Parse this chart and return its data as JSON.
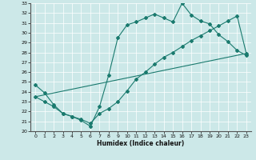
{
  "xlabel": "Humidex (Indice chaleur)",
  "xlim": [
    -0.5,
    23.5
  ],
  "ylim": [
    20,
    33
  ],
  "yticks": [
    20,
    21,
    22,
    23,
    24,
    25,
    26,
    27,
    28,
    29,
    30,
    31,
    32,
    33
  ],
  "xticks": [
    0,
    1,
    2,
    3,
    4,
    5,
    6,
    7,
    8,
    9,
    10,
    11,
    12,
    13,
    14,
    15,
    16,
    17,
    18,
    19,
    20,
    21,
    22,
    23
  ],
  "bg_color": "#cce8e8",
  "line_color": "#1a7a6e",
  "grid_color": "#ffffff",
  "line1_x": [
    0,
    1,
    2,
    3,
    4,
    5,
    6,
    7,
    8,
    9,
    10,
    11,
    12,
    13,
    14,
    15,
    16,
    17,
    18,
    19,
    20,
    21,
    22,
    23
  ],
  "line1_y": [
    24.7,
    23.9,
    22.7,
    21.8,
    21.5,
    21.1,
    20.5,
    22.5,
    25.7,
    29.5,
    30.8,
    31.1,
    31.5,
    31.9,
    31.5,
    31.1,
    33.0,
    31.8,
    31.2,
    30.9,
    29.8,
    29.1,
    28.2,
    27.7
  ],
  "line2_x": [
    0,
    1,
    2,
    3,
    4,
    5,
    6,
    7,
    8,
    9,
    10,
    11,
    12,
    13,
    14,
    15,
    16,
    17,
    18,
    19,
    20,
    21,
    22,
    23
  ],
  "line2_y": [
    23.5,
    23.0,
    22.5,
    21.8,
    21.5,
    21.2,
    20.8,
    21.8,
    22.3,
    23.0,
    24.1,
    25.3,
    26.0,
    26.8,
    27.5,
    28.0,
    28.6,
    29.2,
    29.7,
    30.2,
    30.7,
    31.2,
    31.7,
    27.9
  ],
  "line3_x": [
    0,
    23
  ],
  "line3_y": [
    23.5,
    27.9
  ]
}
